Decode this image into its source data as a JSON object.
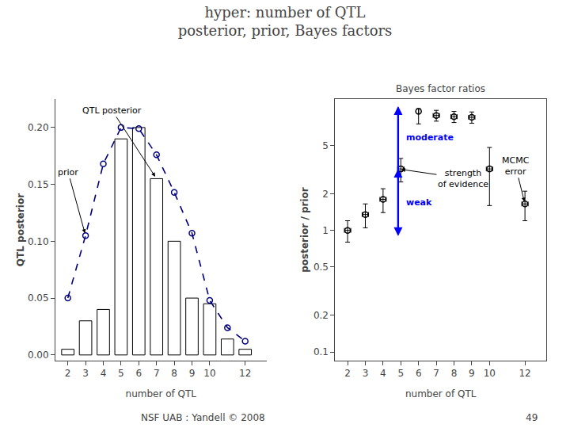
{
  "title": "hyper: number of QTL\nposterior, prior, Bayes factors",
  "annotations": [
    "NSF UAB : Yandell © 2008",
    "49"
  ],
  "chart_data": [
    {
      "type": "bar",
      "x": [
        2,
        3,
        4,
        5,
        6,
        7,
        8,
        9,
        10,
        11,
        12
      ],
      "xlabel": "number of QTL",
      "ylabel": "QTL posterior",
      "xlim": [
        1.3,
        13.2
      ],
      "ylim": [
        -0.005,
        0.225
      ],
      "xticks": [
        2,
        3,
        4,
        5,
        6,
        7,
        8,
        9,
        10,
        12
      ],
      "yticks": [
        {
          "value": 0,
          "label": "0.00"
        },
        0.05,
        {
          "value": 0.1,
          "label": "0.10"
        },
        0.15,
        {
          "value": 0.2,
          "label": "0.20"
        }
      ],
      "grid": false,
      "series": [
        {
          "type": "bar",
          "color": "white",
          "values": [
            0.005,
            0.03,
            0.04,
            0.19,
            0.2,
            0.155,
            0.1,
            0.05,
            0.045,
            0.014,
            0.005
          ]
        },
        {
          "type": "line",
          "color": "navy",
          "marker": "open circle",
          "line_style": "dashed",
          "values": [
            0.05,
            0.105,
            0.168,
            0.2,
            0.199,
            0.176,
            0.143,
            0.107,
            0.048,
            0.024,
            0.012
          ]
        }
      ],
      "annotations": [
        {
          "text": "QTL posterior",
          "series": 0,
          "x": 7
        },
        {
          "text": "prior",
          "series": 1,
          "x": 3
        }
      ]
    },
    {
      "type": "scatter",
      "title": "Bayes factor ratios",
      "x": [
        2,
        3,
        4,
        5,
        6,
        7,
        8,
        9,
        10,
        12
      ],
      "xlabel": "number of QTL",
      "ylabel": "posterior / prior",
      "log": "y",
      "xlim": [
        1.3,
        13.2
      ],
      "ylim": [
        0.085,
        12.0
      ],
      "xticks": [
        2,
        3,
        4,
        5,
        6,
        7,
        8,
        9,
        10,
        12
      ],
      "yticks": [
        0.1,
        0.2,
        0.5,
        1,
        2,
        5
      ],
      "grid": false,
      "series": [
        {
          "type": "scatter",
          "color": "black",
          "marker": "open circle",
          "values": [
            1.0,
            1.35,
            1.8,
            3.2,
            9.5,
            8.8,
            8.6,
            8.5,
            3.2,
            1.65
          ],
          "error_minus": [
            0.2,
            0.3,
            0.4,
            0.7,
            2.0,
            0.9,
            0.9,
            0.9,
            1.6,
            0.45
          ],
          "error_plus": [
            0.2,
            0.3,
            0.4,
            0.7,
            0.5,
            0.9,
            0.9,
            0.9,
            1.6,
            0.45
          ],
          "x_error": [
            0.18,
            0.18,
            0.18,
            0.18,
            0.0,
            0.18,
            0.18,
            0.18,
            0.18,
            0.18
          ]
        }
      ],
      "evidence": {
        "x": 4.85,
        "bounds": [
          0.9,
          3.2,
          10.5
        ],
        "labels": [
          "weak",
          "moderate"
        ],
        "color": "blue",
        "text": "strength\nof evidence"
      },
      "annotations": [
        {
          "text": "MCMC\nerror",
          "series": 0,
          "x": 12
        }
      ]
    }
  ]
}
